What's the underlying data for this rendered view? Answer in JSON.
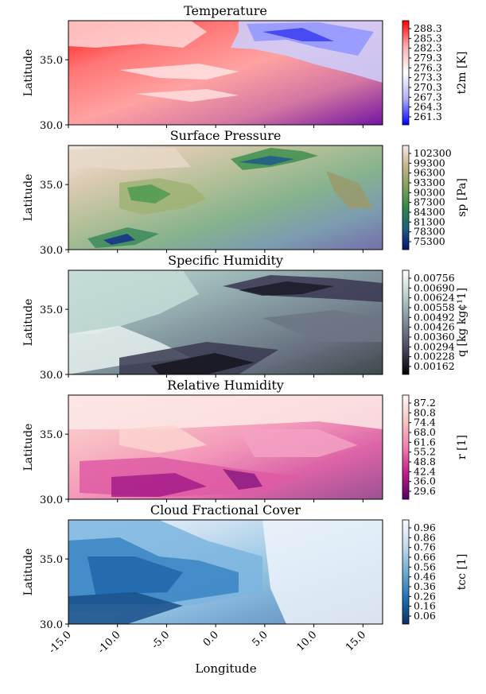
{
  "figure": {
    "xlabel": "Longitude",
    "x_ticks": [
      "-15.0",
      "-10.0",
      "-5.0",
      "0.0",
      "5.0",
      "10.0",
      "15.0"
    ]
  },
  "chart_data": [
    {
      "type": "heatmap",
      "title": "Temperature",
      "ylabel": "Latitude",
      "y_ticks": [
        "35.0",
        "30.0"
      ],
      "xlim": [
        -15,
        17
      ],
      "ylim": [
        30,
        38
      ],
      "colorbar_label": "t2m [K]",
      "colorbar_ticks": [
        "288.3",
        "285.3",
        "282.3",
        "279.3",
        "276.3",
        "273.3",
        "270.3",
        "267.3",
        "264.3",
        "261.3"
      ],
      "colormap": [
        "#ff0000",
        "#ffb0b0",
        "#ffffff",
        "#b0b0ff",
        "#0000ff"
      ]
    },
    {
      "type": "heatmap",
      "title": "Surface Pressure",
      "ylabel": "Latitude",
      "y_ticks": [
        "35.0",
        "30.0"
      ],
      "xlim": [
        -15,
        17
      ],
      "ylim": [
        30,
        38
      ],
      "colorbar_label": "sp [Pa]",
      "colorbar_ticks": [
        "102300",
        "99300",
        "96300",
        "93300",
        "90300",
        "87300",
        "84300",
        "81300",
        "78300",
        "75300"
      ],
      "colormap": [
        "#f6e9e6",
        "#c8b48a",
        "#7ea05a",
        "#2e8a46",
        "#1b5f86",
        "#0a0f78"
      ]
    },
    {
      "type": "heatmap",
      "title": "Specific Humidity",
      "ylabel": "Latitude",
      "y_ticks": [
        "35.0",
        "30.0"
      ],
      "xlim": [
        -15,
        17
      ],
      "ylim": [
        30,
        38
      ],
      "colorbar_label": "q [kg kg¢¹1]",
      "colorbar_ticks": [
        "0.00756",
        "0.00690",
        "0.00624",
        "0.00558",
        "0.00492",
        "0.00426",
        "0.00360",
        "0.00294",
        "0.00228",
        "0.00162"
      ],
      "colormap": [
        "#ffffff",
        "#b6d2ce",
        "#7d8b98",
        "#4b4762",
        "#000000"
      ]
    },
    {
      "type": "heatmap",
      "title": "Relative Humidity",
      "ylabel": "Latitude",
      "y_ticks": [
        "35.0",
        "30.0"
      ],
      "xlim": [
        -15,
        17
      ],
      "ylim": [
        30,
        38
      ],
      "colorbar_label": "r [1]",
      "colorbar_ticks": [
        "87.2",
        "80.8",
        "74.4",
        "68.0",
        "61.6",
        "55.2",
        "48.8",
        "42.4",
        "36.0",
        "29.6"
      ],
      "colormap": [
        "#fff7f3",
        "#fbc5c0",
        "#f27fb0",
        "#c41b8c",
        "#52006a"
      ]
    },
    {
      "type": "heatmap",
      "title": "Cloud Fractional Cover",
      "ylabel": "Latitude",
      "y_ticks": [
        "35.0",
        "30.0"
      ],
      "xlim": [
        -15,
        17
      ],
      "ylim": [
        30,
        38
      ],
      "colorbar_label": "tcc [1]",
      "colorbar_ticks": [
        "0.96",
        "0.86",
        "0.76",
        "0.66",
        "0.56",
        "0.46",
        "0.36",
        "0.26",
        "0.16",
        "0.06"
      ],
      "colormap": [
        "#f7fbff",
        "#c6dbef",
        "#6baed6",
        "#2171b5",
        "#08306b"
      ]
    }
  ]
}
